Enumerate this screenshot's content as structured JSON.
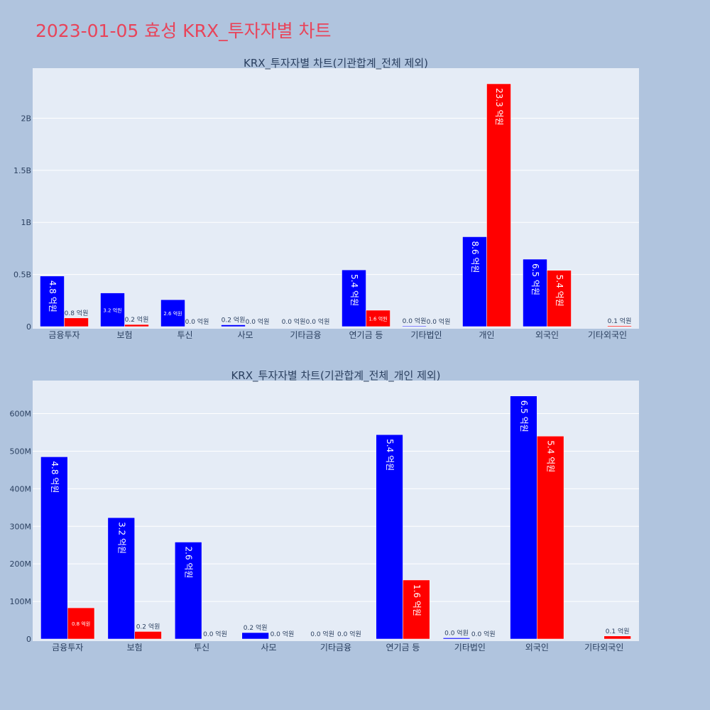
{
  "page_title": "2023-01-05 효성 KRX_투자자별 차트",
  "colors": {
    "buy": "#0000ff",
    "sell": "#ff0000",
    "plot_bg": "#e5ecf6",
    "page_bg": "#b0c4de",
    "title": "#e8445a"
  },
  "chart_data": [
    {
      "type": "bar",
      "title": "KRX_투자자별 차트(기관합계_전체 제외)",
      "categories": [
        "금융투자",
        "보험",
        "투신",
        "사모",
        "기타금융",
        "연기금 등",
        "기타법인",
        "개인",
        "외국인",
        "기타외국인"
      ],
      "series": [
        {
          "values": [
            485000000,
            323000000,
            258000000,
            17000000,
            0,
            544000000,
            3000000,
            862000000,
            647000000,
            0
          ],
          "labels": [
            "4.8 억원",
            "3.2 억원",
            "2.6 억원",
            "0.2 억원",
            "0.0 억원",
            "5.4 억원",
            "0.0 억원",
            "8.6 억원",
            "6.5 억원",
            ""
          ]
        },
        {
          "values": [
            83000000,
            20000000,
            0,
            0,
            0,
            157000000,
            0,
            2330000000,
            540000000,
            8000000
          ],
          "labels": [
            "0.8 억원",
            "0.2 억원",
            "0.0 억원",
            "0.0 억원",
            "0.0 억원",
            "1.6 억원",
            "0.0 억원",
            "23.3 억원",
            "5.4 억원",
            "0.1 억원"
          ]
        }
      ],
      "y_ticks": [
        0,
        500000000,
        1000000000,
        1500000000,
        2000000000
      ],
      "y_tick_labels": [
        "0",
        "0.5B",
        "1B",
        "1.5B",
        "2B"
      ],
      "ylim": [
        0,
        2480000000
      ]
    },
    {
      "type": "bar",
      "title": "KRX_투자자별 차트(기관합계_전체_개인 제외)",
      "categories": [
        "금융투자",
        "보험",
        "투신",
        "사모",
        "기타금융",
        "연기금 등",
        "기타법인",
        "외국인",
        "기타외국인"
      ],
      "series": [
        {
          "values": [
            485000000,
            323000000,
            258000000,
            17000000,
            0,
            544000000,
            3000000,
            647000000,
            0
          ],
          "labels": [
            "4.8 억원",
            "3.2 억원",
            "2.6 억원",
            "0.2 억원",
            "0.0 억원",
            "5.4 억원",
            "0.0 억원",
            "6.5 억원",
            ""
          ]
        },
        {
          "values": [
            83000000,
            20000000,
            0,
            0,
            0,
            157000000,
            0,
            540000000,
            8000000
          ],
          "labels": [
            "0.8 억원",
            "0.2 억원",
            "0.0 억원",
            "0.0 억원",
            "0.0 억원",
            "1.6 억원",
            "0.0 억원",
            "5.4 억원",
            "0.1 억원"
          ]
        }
      ],
      "y_ticks": [
        0,
        100000000,
        200000000,
        300000000,
        400000000,
        500000000,
        600000000
      ],
      "y_tick_labels": [
        "0",
        "100M",
        "200M",
        "300M",
        "400M",
        "500M",
        "600M"
      ],
      "ylim": [
        0,
        688000000
      ]
    }
  ]
}
